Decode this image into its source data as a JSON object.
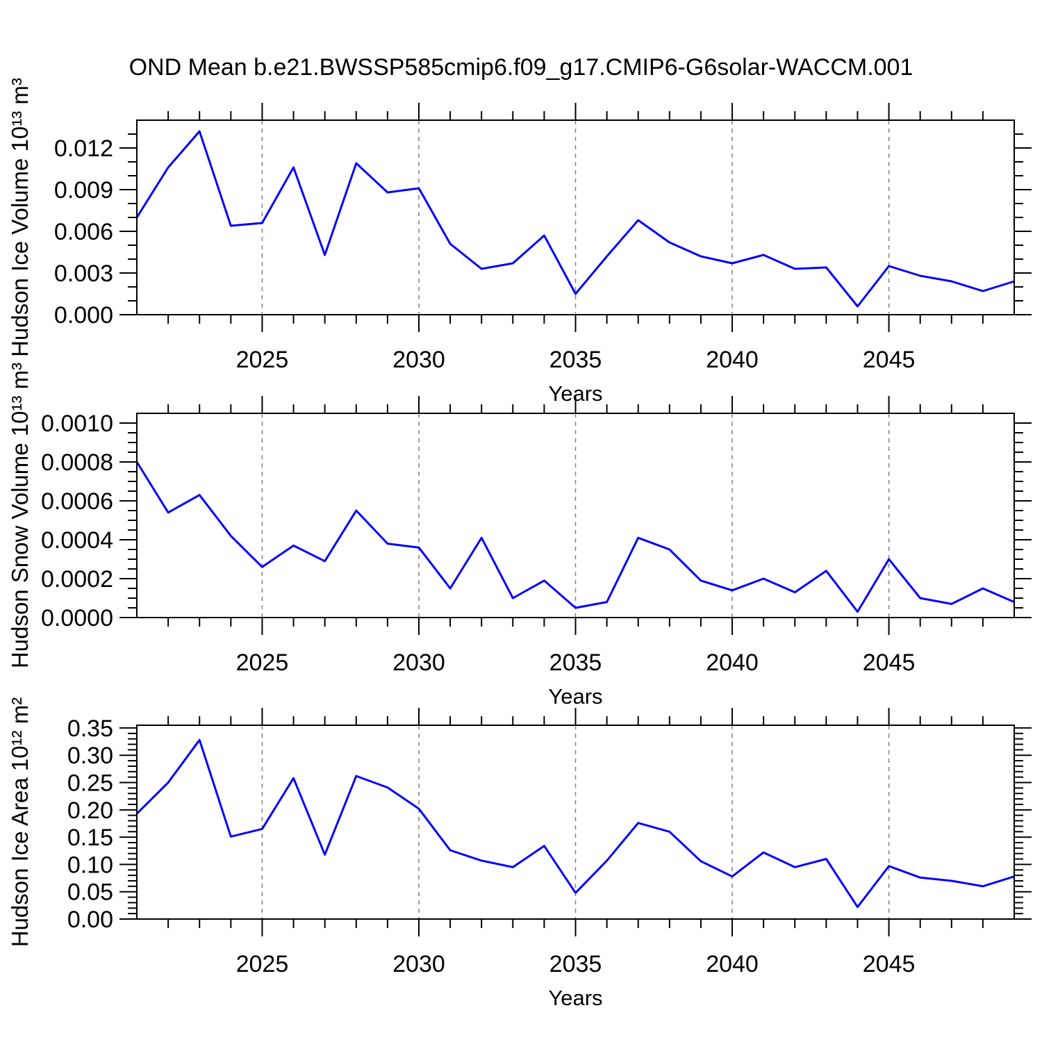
{
  "title": "OND Mean b.e21.BWSSP585cmip6.f09_g17.CMIP6-G6solar-WACCM.001",
  "line_color": "#0000ff",
  "grid_color": "#808080",
  "axis_color": "#000000",
  "chart_data": [
    {
      "type": "line",
      "name": "hudson-ice-volume",
      "ylabel": "Hudson Ice Volume 10¹³ m³",
      "xlabel": "Years",
      "x": [
        2021,
        2022,
        2023,
        2024,
        2025,
        2026,
        2027,
        2028,
        2029,
        2030,
        2031,
        2032,
        2033,
        2034,
        2035,
        2036,
        2037,
        2038,
        2039,
        2040,
        2041,
        2042,
        2043,
        2044,
        2045,
        2046,
        2047,
        2048,
        2049
      ],
      "values": [
        0.007,
        0.0106,
        0.0132,
        0.0064,
        0.0066,
        0.0106,
        0.0043,
        0.0109,
        0.0088,
        0.0091,
        0.0051,
        0.0033,
        0.0037,
        0.0057,
        0.0015,
        0.0042,
        0.0068,
        0.0052,
        0.0042,
        0.0037,
        0.0043,
        0.0033,
        0.0034,
        0.0006,
        0.0035,
        0.0028,
        0.0024,
        0.0017,
        0.0024
      ],
      "xlim": [
        2021,
        2049
      ],
      "ylim": [
        0,
        0.014
      ],
      "xticks": {
        "values": [
          2025,
          2030,
          2035,
          2040,
          2045
        ],
        "labels": [
          "2025",
          "2030",
          "2035",
          "2040",
          "2045"
        ]
      },
      "xtick_minor_step": 1,
      "yticks": {
        "values": [
          0.0,
          0.003,
          0.006,
          0.009,
          0.012
        ],
        "labels": [
          "0.000",
          "0.003",
          "0.006",
          "0.009",
          "0.012"
        ]
      },
      "ytick_minor_step": 0.001,
      "grid": "vertical-dashed-at-major-xticks",
      "legend": "none",
      "line_width": 3
    },
    {
      "type": "line",
      "name": "hudson-snow-volume",
      "ylabel": "Hudson Snow Volume 10¹³ m³",
      "xlabel": "Years",
      "x": [
        2021,
        2022,
        2023,
        2024,
        2025,
        2026,
        2027,
        2028,
        2029,
        2030,
        2031,
        2032,
        2033,
        2034,
        2035,
        2036,
        2037,
        2038,
        2039,
        2040,
        2041,
        2042,
        2043,
        2044,
        2045,
        2046,
        2047,
        2048,
        2049
      ],
      "values": [
        0.0008,
        0.00054,
        0.00063,
        0.00042,
        0.00026,
        0.00037,
        0.00029,
        0.00055,
        0.00038,
        0.00036,
        0.00015,
        0.00041,
        0.0001,
        0.00019,
        5e-05,
        8e-05,
        0.00041,
        0.00035,
        0.00019,
        0.00014,
        0.0002,
        0.00013,
        0.00024,
        3e-05,
        0.0003,
        0.0001,
        7e-05,
        0.00015,
        8e-05
      ],
      "xlim": [
        2021,
        2049
      ],
      "ylim": [
        0,
        0.00105
      ],
      "xticks": {
        "values": [
          2025,
          2030,
          2035,
          2040,
          2045
        ],
        "labels": [
          "2025",
          "2030",
          "2035",
          "2040",
          "2045"
        ]
      },
      "xtick_minor_step": 1,
      "yticks": {
        "values": [
          0.0,
          0.0002,
          0.0004,
          0.0006,
          0.0008,
          0.001
        ],
        "labels": [
          "0.0000",
          "0.0002",
          "0.0004",
          "0.0006",
          "0.0008",
          "0.0010"
        ]
      },
      "ytick_minor_step": 5e-05,
      "grid": "vertical-dashed-at-major-xticks",
      "legend": "none",
      "line_width": 3
    },
    {
      "type": "line",
      "name": "hudson-ice-area",
      "ylabel": "Hudson Ice Area 10¹² m²",
      "xlabel": "Years",
      "x": [
        2021,
        2022,
        2023,
        2024,
        2025,
        2026,
        2027,
        2028,
        2029,
        2030,
        2031,
        2032,
        2033,
        2034,
        2035,
        2036,
        2037,
        2038,
        2039,
        2040,
        2041,
        2042,
        2043,
        2044,
        2045,
        2046,
        2047,
        2048,
        2049
      ],
      "values": [
        0.193,
        0.25,
        0.328,
        0.151,
        0.165,
        0.258,
        0.118,
        0.262,
        0.241,
        0.202,
        0.126,
        0.107,
        0.095,
        0.134,
        0.048,
        0.107,
        0.176,
        0.16,
        0.106,
        0.078,
        0.122,
        0.095,
        0.11,
        0.022,
        0.097,
        0.076,
        0.07,
        0.06,
        0.078
      ],
      "xlim": [
        2021,
        2049
      ],
      "ylim": [
        0,
        0.355
      ],
      "xticks": {
        "values": [
          2025,
          2030,
          2035,
          2040,
          2045
        ],
        "labels": [
          "2025",
          "2030",
          "2035",
          "2040",
          "2045"
        ]
      },
      "xtick_minor_step": 1,
      "yticks": {
        "values": [
          0.0,
          0.05,
          0.1,
          0.15,
          0.2,
          0.25,
          0.3,
          0.35
        ],
        "labels": [
          "0.00",
          "0.05",
          "0.10",
          "0.15",
          "0.20",
          "0.25",
          "0.30",
          "0.35"
        ]
      },
      "ytick_minor_step": 0.01,
      "grid": "vertical-dashed-at-major-xticks",
      "legend": "none",
      "line_width": 3
    }
  ]
}
